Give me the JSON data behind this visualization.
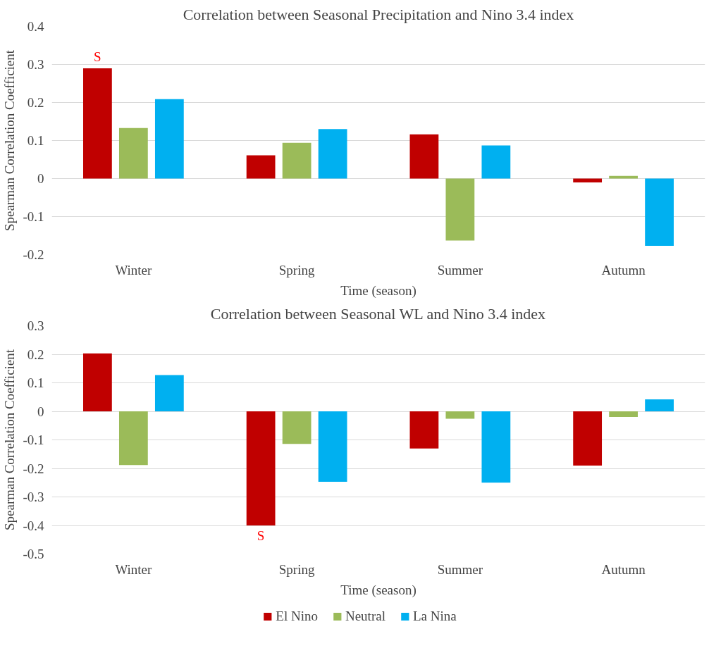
{
  "chart_data": [
    {
      "type": "bar",
      "title": "Correlation between Seasonal Precipitation and Nino 3.4 index",
      "xlabel": "Time (season)",
      "ylabel": "Spearman Correlation Coefficient",
      "categories": [
        "Winter",
        "Spring",
        "Summer",
        "Autumn"
      ],
      "series": [
        {
          "color": "#c00000",
          "values": [
            0.29,
            0.061,
            0.116,
            -0.01
          ]
        },
        {
          "color": "#9bbb59",
          "values": [
            0.133,
            0.094,
            -0.163,
            0.007
          ]
        },
        {
          "color": "#00b0f0",
          "values": [
            0.209,
            0.13,
            0.087,
            -0.177
          ]
        }
      ],
      "ylim": [
        -0.2,
        0.4
      ],
      "yticks": [
        -0.2,
        -0.1,
        0,
        0.1,
        0.2,
        0.3,
        0.4
      ],
      "grid": "y",
      "legend": false,
      "annotations": [
        {
          "text": "S",
          "y": 0.29
        }
      ]
    },
    {
      "type": "bar",
      "title": "Correlation between Seasonal WL and Nino 3.4 index",
      "xlabel": "Time (season)",
      "ylabel": "Spearman Correlation Coefficient",
      "categories": [
        "Winter",
        "Spring",
        "Summer",
        "Autumn"
      ],
      "series": [
        {
          "name": "El Nino",
          "color": "#c00000",
          "values": [
            0.203,
            -0.4,
            -0.13,
            -0.19
          ]
        },
        {
          "name": "Neutral",
          "color": "#9bbb59",
          "values": [
            -0.188,
            -0.114,
            -0.026,
            -0.02
          ]
        },
        {
          "name": "La Nina",
          "color": "#00b0f0",
          "values": [
            0.127,
            -0.247,
            -0.25,
            0.042
          ]
        }
      ],
      "ylim": [
        -0.5,
        0.3
      ],
      "yticks": [
        -0.5,
        -0.4,
        -0.3,
        -0.2,
        -0.1,
        0,
        0.1,
        0.2,
        0.3
      ],
      "grid": "y",
      "legend": "bottom",
      "annotations": [
        {
          "text": "S",
          "y": -0.4
        }
      ]
    }
  ]
}
